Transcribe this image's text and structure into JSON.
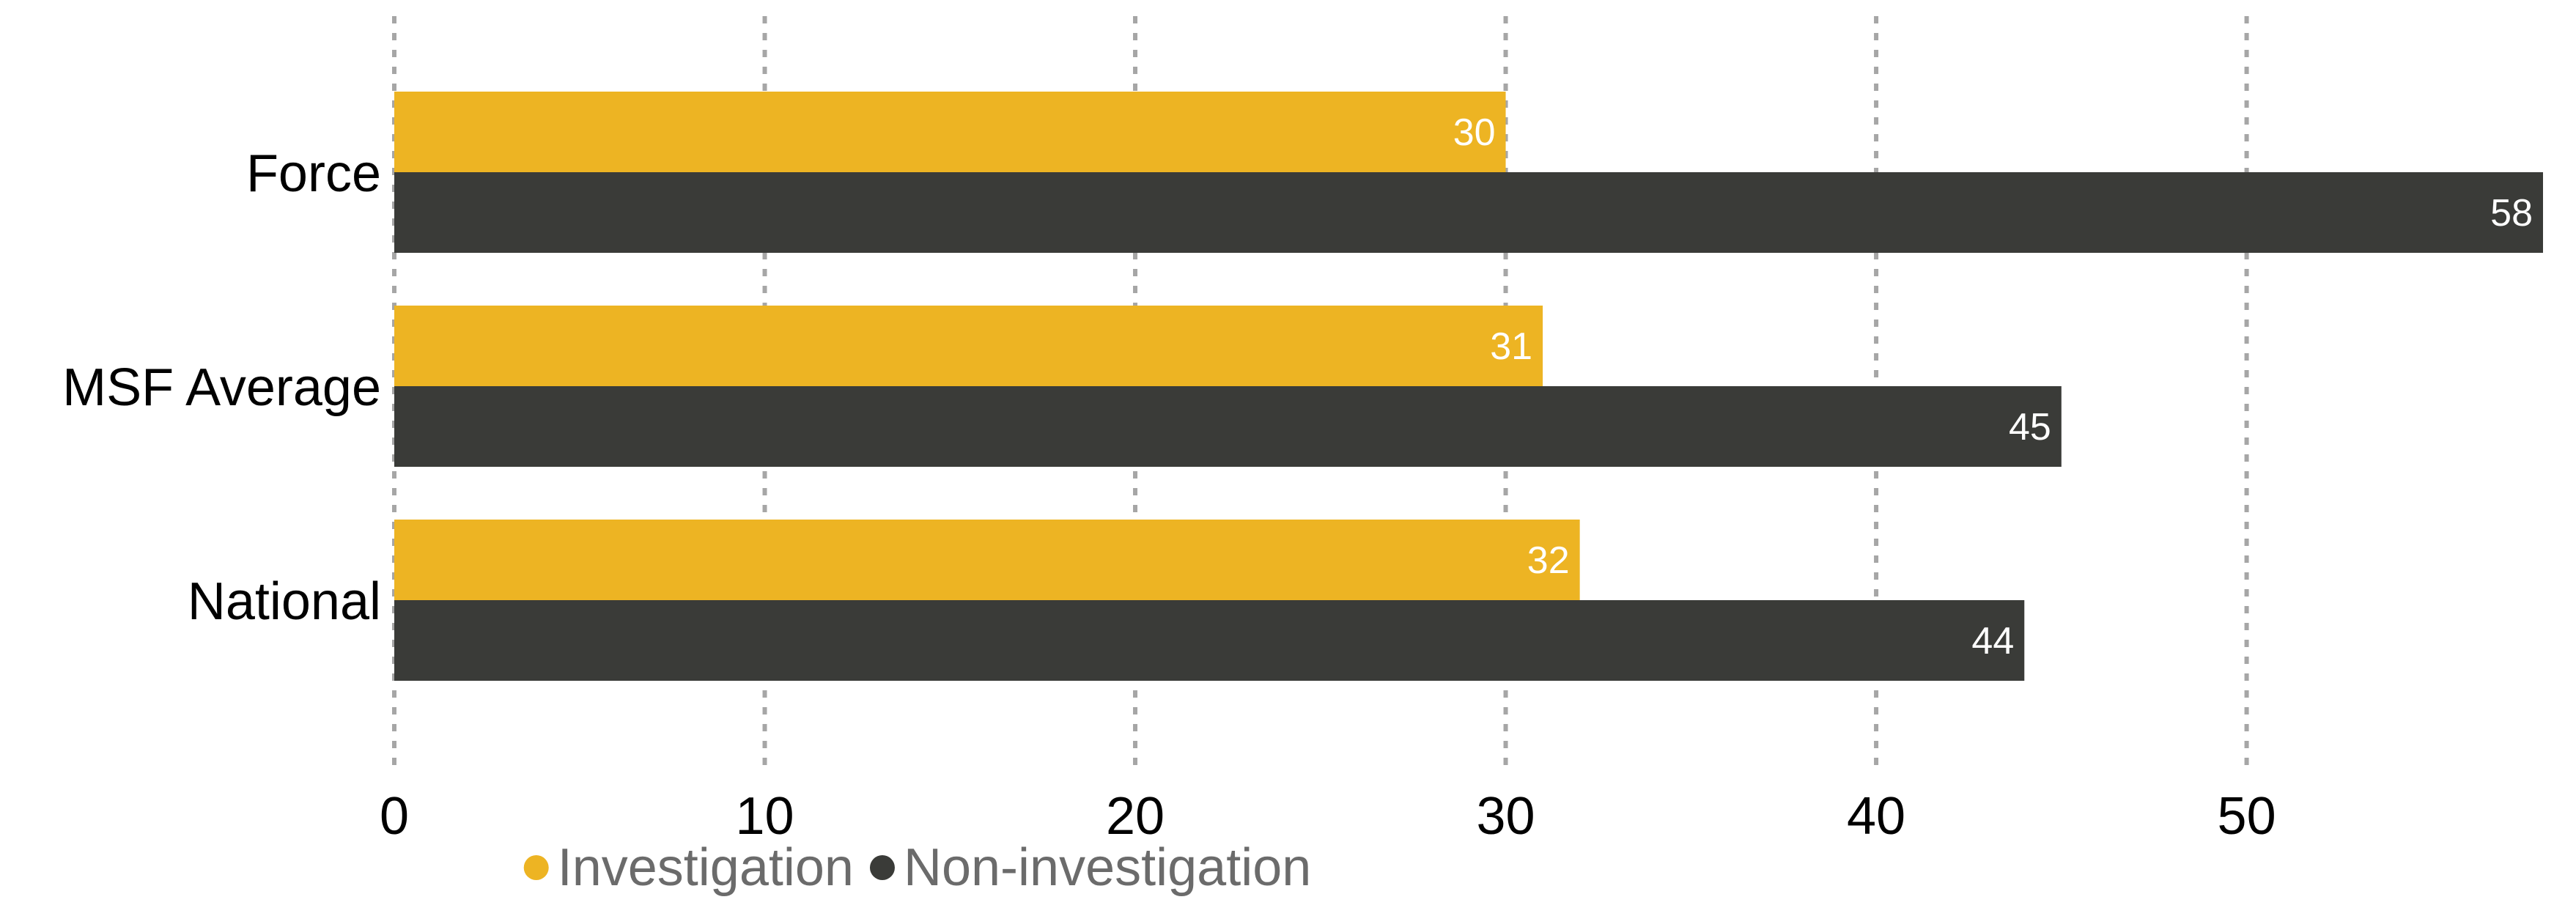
{
  "chart_data": {
    "type": "bar",
    "orientation": "horizontal",
    "categories": [
      "Force",
      "MSF Average",
      "National"
    ],
    "series": [
      {
        "name": "Investigation",
        "values": [
          30,
          31,
          32
        ],
        "color": "#EDB423"
      },
      {
        "name": "Non-investigation",
        "values": [
          58,
          45,
          44
        ],
        "color": "#3A3B38"
      }
    ],
    "xlim": [
      0,
      58
    ],
    "xticks": [
      0,
      10,
      20,
      30,
      40,
      50
    ],
    "grid": true,
    "grid_style": "dotted",
    "legend_position": "bottom",
    "title": "",
    "xlabel": "",
    "ylabel": ""
  }
}
